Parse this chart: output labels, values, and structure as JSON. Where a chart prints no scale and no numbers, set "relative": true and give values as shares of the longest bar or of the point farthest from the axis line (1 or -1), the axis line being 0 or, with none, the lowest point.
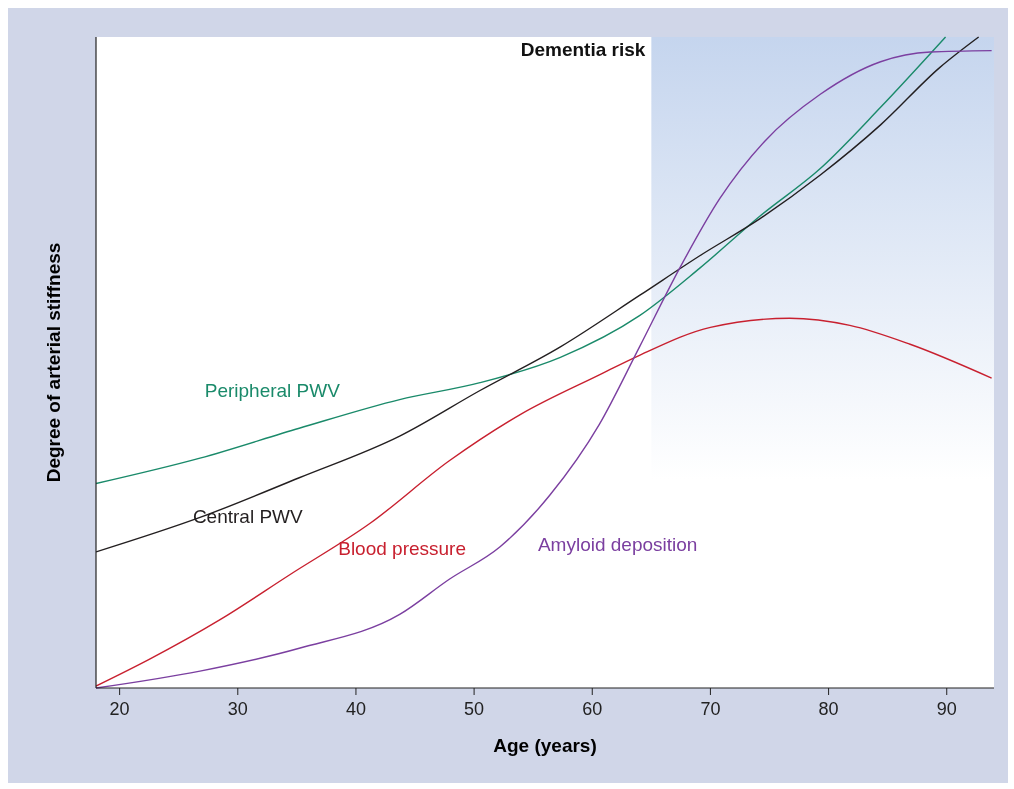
{
  "chart_data": {
    "type": "line",
    "xlabel": "Age (years)",
    "ylabel": "Degree of arterial stiffness",
    "relative": true,
    "xlim": [
      18,
      94
    ],
    "xticks": [
      20,
      30,
      40,
      50,
      60,
      70,
      80,
      90
    ],
    "grid": false,
    "marker": "none",
    "line_style": "solid",
    "bands": [
      {
        "axis": "x",
        "from": 65,
        "to": 94,
        "label": "Dementia risk",
        "color": "#c5d5ee"
      }
    ],
    "series": [
      {
        "name": "Peripheral PWV",
        "color": "#1a8a6a",
        "x": [
          18,
          26.8,
          35.2,
          43.7,
          50.5,
          57.3,
          64,
          69.1,
          74.2,
          79.3,
          84.4,
          89.9
        ],
        "values": [
          0.314,
          0.353,
          0.399,
          0.443,
          0.469,
          0.508,
          0.572,
          0.645,
          0.725,
          0.798,
          0.892,
          1.0
        ]
      },
      {
        "name": "Central PWV",
        "color": "#231f20",
        "x": [
          18,
          26.8,
          35.2,
          43.7,
          50.5,
          57.3,
          64,
          69.1,
          74.2,
          79.3,
          84.4,
          89.4,
          92.7
        ],
        "values": [
          0.209,
          0.262,
          0.323,
          0.387,
          0.457,
          0.524,
          0.603,
          0.664,
          0.721,
          0.788,
          0.865,
          0.953,
          1.0
        ]
      },
      {
        "name": "Blood pressure",
        "color": "#c8202f",
        "x": [
          18,
          22.5,
          28.5,
          34.4,
          41.2,
          47.9,
          53.9,
          60.6,
          64,
          70,
          76.7,
          81.8,
          86.9,
          93.8
        ],
        "values": [
          0.003,
          0.044,
          0.105,
          0.174,
          0.253,
          0.349,
          0.42,
          0.481,
          0.511,
          0.554,
          0.568,
          0.557,
          0.528,
          0.476
        ]
      },
      {
        "name": "Amyloid deposition",
        "color": "#7b3fa0",
        "x": [
          18,
          26.8,
          35.2,
          43.7,
          47.9,
          52.2,
          56.4,
          60.6,
          64,
          67.4,
          70.8,
          74.6,
          79.3,
          84.4,
          88.6,
          93.8
        ],
        "values": [
          0,
          0.026,
          0.061,
          0.113,
          0.167,
          0.217,
          0.296,
          0.405,
          0.524,
          0.645,
          0.752,
          0.84,
          0.912,
          0.962,
          0.977,
          0.979
        ]
      }
    ]
  }
}
